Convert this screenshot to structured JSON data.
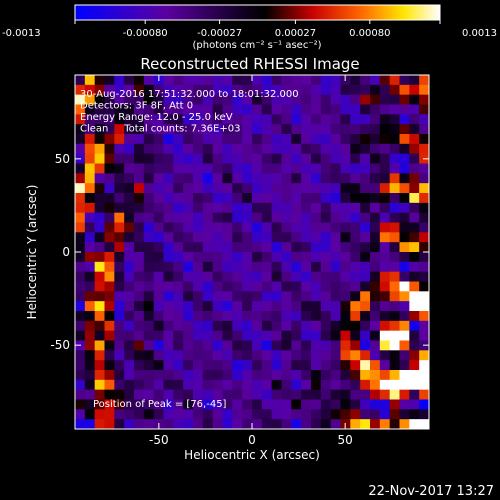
{
  "chart_data": {
    "type": "heatmap",
    "title": "Reconstructed RHESSI Image",
    "xlabel": "Heliocentric X (arcsec)",
    "ylabel": "Heliocentric Y (arcsec)",
    "xlim": [
      -95,
      95
    ],
    "ylim": [
      -95,
      95
    ],
    "x_ticks": [
      "-50",
      "0",
      "50"
    ],
    "y_ticks": [
      "50",
      "0",
      "-50"
    ],
    "x_tick_values": [
      -50,
      0,
      50
    ],
    "y_tick_values": [
      50,
      0,
      -50
    ],
    "colorbar": {
      "min": -0.0013,
      "max": 0.0013,
      "tick_labels": [
        "-0.0013",
        "-0.00080",
        "-0.00027",
        "0.00027",
        "0.00080",
        "0.0013"
      ],
      "tick_values": [
        -0.0013,
        -0.0008,
        -0.00027,
        0.00027,
        0.0008,
        0.0013
      ],
      "units": "(photons cm⁻² s⁻¹ asec⁻²)",
      "colors": [
        "#0000ff",
        "#5a00a0",
        "#140028",
        "#000000",
        "#c80000",
        "#ff6400",
        "#ffe600",
        "#ffffff"
      ]
    },
    "annotations": [
      "30-Aug-2016 17:51:32.000 to 18:01:32.000",
      "Detectors: 3F 8F, Att 0",
      "Energy Range: 12.0 - 25.0 keV",
      "Clean     Total counts: 7.36E+03"
    ],
    "peak_label": "Position of Peak = [76,-45]",
    "peak": [
      76,
      -45
    ],
    "grid": false
  },
  "footer": {
    "timestamp": "22-Nov-2017 13:27"
  }
}
